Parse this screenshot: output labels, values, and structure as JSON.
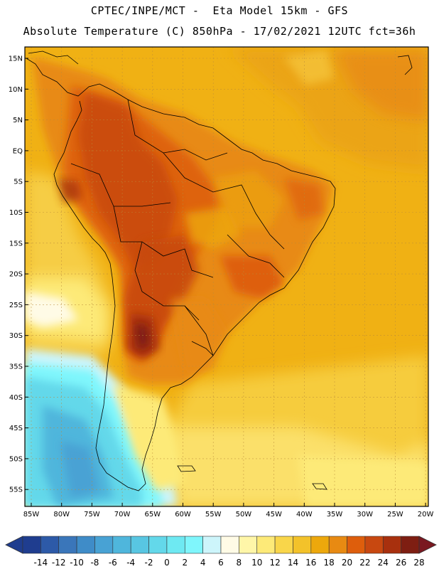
{
  "header": {
    "line1": "CPTEC/INPE/MCT -  Eta Model 15km - GFS",
    "line2": "Absolute Temperature (C) 850hPa - 17/02/2021 12UTC fct=36h"
  },
  "map": {
    "lat_labels": [
      "15N",
      "10N",
      "5N",
      "EQ",
      "5S",
      "10S",
      "15S",
      "20S",
      "25S",
      "30S",
      "35S",
      "40S",
      "45S",
      "50S",
      "55S"
    ],
    "lon_labels": [
      "85W",
      "80W",
      "75W",
      "70W",
      "65W",
      "60W",
      "55W",
      "50W",
      "45W",
      "40W",
      "35W",
      "30W",
      "25W",
      "20W"
    ]
  },
  "colorbar": {
    "labels": [
      "-14",
      "-12",
      "-10",
      "-8",
      "-6",
      "-4",
      "-2",
      "0",
      "2",
      "4",
      "6",
      "8",
      "10",
      "12",
      "14",
      "16",
      "18",
      "20",
      "22",
      "24",
      "26",
      "28"
    ],
    "colors": [
      "#1f3d8f",
      "#2d5aa8",
      "#3a76ba",
      "#3f8cc8",
      "#48a2d4",
      "#4fb6dc",
      "#58c6e2",
      "#63d8ea",
      "#6ee9f2",
      "#7ff6fc",
      "#cdf5fb",
      "#fffbe6",
      "#fff6a8",
      "#fdea78",
      "#f9d64a",
      "#f3c22a",
      "#eda80c",
      "#e88a12",
      "#de5e0c",
      "#c84810",
      "#a8300e",
      "#7e1e12"
    ],
    "low_color": "#1f3d8f",
    "high_color": "#7a1820"
  }
}
